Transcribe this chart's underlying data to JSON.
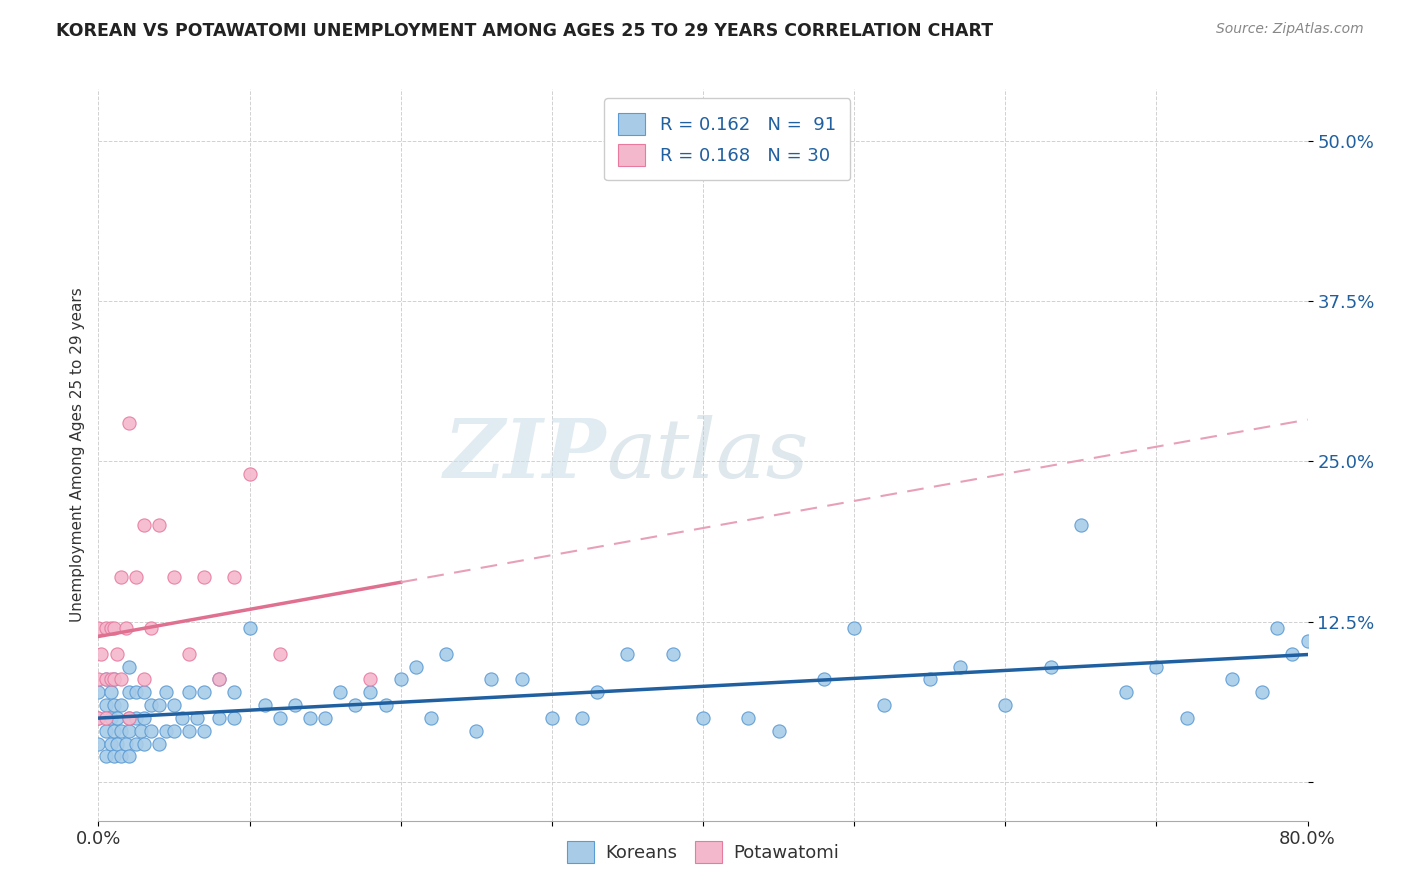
{
  "title": "KOREAN VS POTAWATOMI UNEMPLOYMENT AMONG AGES 25 TO 29 YEARS CORRELATION CHART",
  "source": "Source: ZipAtlas.com",
  "ylabel": "Unemployment Among Ages 25 to 29 years",
  "xlim": [
    0.0,
    0.8
  ],
  "ylim": [
    -0.03,
    0.54
  ],
  "xticks": [
    0.0,
    0.1,
    0.2,
    0.3,
    0.4,
    0.5,
    0.6,
    0.7,
    0.8
  ],
  "ytick_positions": [
    0.0,
    0.125,
    0.25,
    0.375,
    0.5
  ],
  "ytick_labels": [
    "",
    "12.5%",
    "25.0%",
    "37.5%",
    "50.0%"
  ],
  "korean_color": "#a8cce8",
  "potawatomi_color": "#f4b8cc",
  "korean_edge_color": "#5b9bd5",
  "potawatomi_edge_color": "#e87aa0",
  "korean_line_color": "#2060a0",
  "potawatomi_line_color": "#e07090",
  "potawatomi_dash_color": "#e8a0b8",
  "legend_label_korean": "Koreans",
  "legend_label_potawatomi": "Potawatomi",
  "watermark_zip": "ZIP",
  "watermark_atlas": "atlas",
  "korean_x": [
    0.0,
    0.0,
    0.0,
    0.005,
    0.005,
    0.005,
    0.005,
    0.008,
    0.008,
    0.008,
    0.01,
    0.01,
    0.01,
    0.01,
    0.012,
    0.012,
    0.015,
    0.015,
    0.015,
    0.018,
    0.02,
    0.02,
    0.02,
    0.02,
    0.02,
    0.025,
    0.025,
    0.025,
    0.028,
    0.03,
    0.03,
    0.03,
    0.035,
    0.035,
    0.04,
    0.04,
    0.045,
    0.045,
    0.05,
    0.05,
    0.055,
    0.06,
    0.06,
    0.065,
    0.07,
    0.07,
    0.08,
    0.08,
    0.09,
    0.09,
    0.1,
    0.11,
    0.12,
    0.13,
    0.14,
    0.15,
    0.16,
    0.17,
    0.18,
    0.19,
    0.2,
    0.21,
    0.22,
    0.23,
    0.25,
    0.26,
    0.28,
    0.3,
    0.32,
    0.33,
    0.35,
    0.38,
    0.4,
    0.43,
    0.45,
    0.48,
    0.5,
    0.52,
    0.55,
    0.57,
    0.6,
    0.63,
    0.65,
    0.68,
    0.7,
    0.72,
    0.75,
    0.77,
    0.78,
    0.79,
    0.8
  ],
  "korean_y": [
    0.03,
    0.05,
    0.07,
    0.02,
    0.04,
    0.06,
    0.08,
    0.03,
    0.05,
    0.07,
    0.02,
    0.04,
    0.06,
    0.08,
    0.03,
    0.05,
    0.02,
    0.04,
    0.06,
    0.03,
    0.02,
    0.04,
    0.05,
    0.07,
    0.09,
    0.03,
    0.05,
    0.07,
    0.04,
    0.03,
    0.05,
    0.07,
    0.04,
    0.06,
    0.03,
    0.06,
    0.04,
    0.07,
    0.04,
    0.06,
    0.05,
    0.04,
    0.07,
    0.05,
    0.04,
    0.07,
    0.05,
    0.08,
    0.05,
    0.07,
    0.12,
    0.06,
    0.05,
    0.06,
    0.05,
    0.05,
    0.07,
    0.06,
    0.07,
    0.06,
    0.08,
    0.09,
    0.05,
    0.1,
    0.04,
    0.08,
    0.08,
    0.05,
    0.05,
    0.07,
    0.1,
    0.1,
    0.05,
    0.05,
    0.04,
    0.08,
    0.12,
    0.06,
    0.08,
    0.09,
    0.06,
    0.09,
    0.2,
    0.07,
    0.09,
    0.05,
    0.08,
    0.07,
    0.12,
    0.1,
    0.11
  ],
  "potawatomi_x": [
    0.0,
    0.0,
    0.0,
    0.002,
    0.005,
    0.005,
    0.005,
    0.008,
    0.008,
    0.01,
    0.01,
    0.012,
    0.015,
    0.015,
    0.018,
    0.02,
    0.02,
    0.025,
    0.03,
    0.03,
    0.035,
    0.04,
    0.05,
    0.06,
    0.07,
    0.08,
    0.09,
    0.1,
    0.12,
    0.18
  ],
  "potawatomi_y": [
    0.05,
    0.08,
    0.12,
    0.1,
    0.05,
    0.08,
    0.12,
    0.08,
    0.12,
    0.08,
    0.12,
    0.1,
    0.08,
    0.16,
    0.12,
    0.05,
    0.28,
    0.16,
    0.08,
    0.2,
    0.12,
    0.2,
    0.16,
    0.1,
    0.16,
    0.08,
    0.16,
    0.24,
    0.1,
    0.08
  ]
}
